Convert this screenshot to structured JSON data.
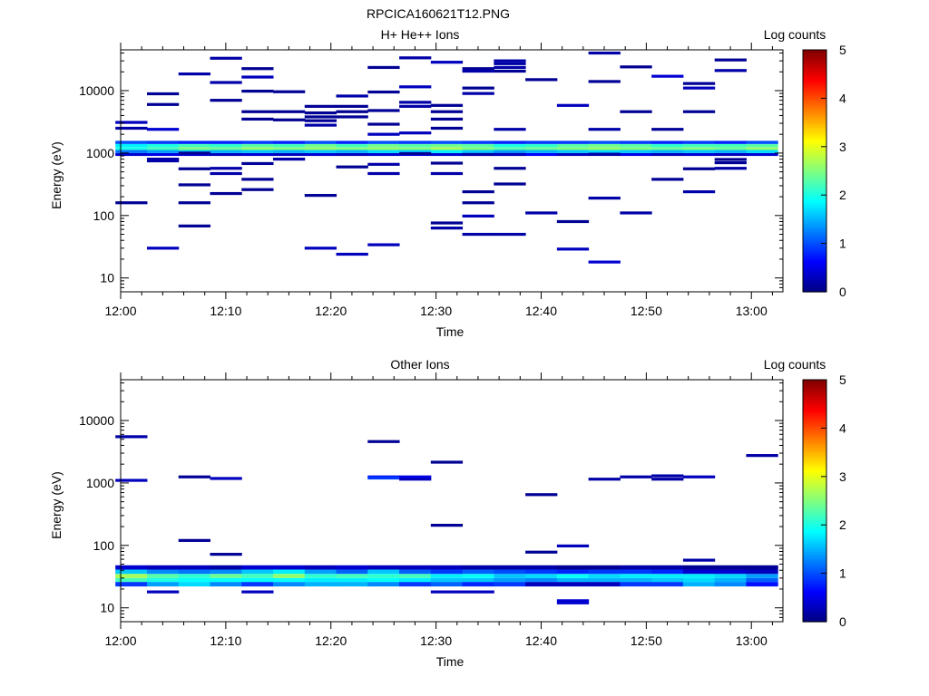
{
  "figure_title": "RPCICA160621T12.PNG",
  "chart_data": [
    {
      "type": "heatmap",
      "title": "H+ He++ Ions",
      "xlabel": "Time",
      "ylabel": "Energy (eV)",
      "yscale": "log",
      "xlim": [
        "12:00",
        "13:03"
      ],
      "ylim": [
        6,
        45000
      ],
      "xticks": [
        "12:00",
        "12:10",
        "12:20",
        "12:30",
        "12:40",
        "12:50",
        "13:00"
      ],
      "yticks": [
        "10",
        "100",
        "1000",
        "10000"
      ],
      "colorbar": {
        "label": "Log counts",
        "range": [
          0,
          5
        ],
        "ticks": [
          "0",
          "1",
          "2",
          "3",
          "4",
          "5"
        ],
        "colormap": "jet"
      },
      "time_columns_min": [
        1,
        4,
        7,
        10,
        13,
        16,
        19,
        22,
        25,
        28,
        31,
        34,
        37,
        40,
        43,
        46,
        49,
        52,
        55,
        58,
        61
      ],
      "band": {
        "energy_bins_ev": [
          900,
          1000,
          1120,
          1250,
          1400,
          1570
        ],
        "levels": [
          [
            0.4,
            1.2,
            2.0,
            1.8,
            1.0
          ],
          [
            0.5,
            1.4,
            2.2,
            2.0,
            0.9
          ],
          [
            0.4,
            1.6,
            2.5,
            2.2,
            0.8
          ],
          [
            0.3,
            1.5,
            2.4,
            2.1,
            0.8
          ],
          [
            0.4,
            1.6,
            2.6,
            2.3,
            0.9
          ],
          [
            0.3,
            1.5,
            2.5,
            2.2,
            0.8
          ],
          [
            0.4,
            1.6,
            2.6,
            2.4,
            1.0
          ],
          [
            0.3,
            1.5,
            2.5,
            2.2,
            0.8
          ],
          [
            0.4,
            1.7,
            2.6,
            2.4,
            1.0
          ],
          [
            0.5,
            1.6,
            2.5,
            2.3,
            0.9
          ],
          [
            0.4,
            1.8,
            2.7,
            2.4,
            1.0
          ],
          [
            0.3,
            1.6,
            2.5,
            2.3,
            0.9
          ],
          [
            0.4,
            1.4,
            2.3,
            2.0,
            0.8
          ],
          [
            0.6,
            1.5,
            2.4,
            2.1,
            0.9
          ],
          [
            0.3,
            1.6,
            2.5,
            2.3,
            0.9
          ],
          [
            0.4,
            1.7,
            2.6,
            2.4,
            1.0
          ],
          [
            0.5,
            1.6,
            2.5,
            2.3,
            0.9
          ],
          [
            0.3,
            1.5,
            2.4,
            2.1,
            0.8
          ],
          [
            0.4,
            1.6,
            2.5,
            2.2,
            0.9
          ],
          [
            0.3,
            1.5,
            2.4,
            2.2,
            0.8
          ],
          [
            0.4,
            1.7,
            2.6,
            2.3,
            1.0
          ]
        ]
      },
      "sparse": [
        [
          1,
          3100,
          0.3
        ],
        [
          1,
          2500,
          0.2
        ],
        [
          1,
          160,
          0.1
        ],
        [
          4,
          8900,
          0.1
        ],
        [
          4,
          6000,
          0.1
        ],
        [
          4,
          2400,
          0.4
        ],
        [
          4,
          800,
          0.2
        ],
        [
          4,
          750,
          0.2
        ],
        [
          4,
          30,
          0.3
        ],
        [
          7,
          18500,
          0.2
        ],
        [
          7,
          1000,
          0.1
        ],
        [
          7,
          560,
          0.1
        ],
        [
          7,
          310,
          0.1
        ],
        [
          7,
          160,
          0.1
        ],
        [
          7,
          68,
          0.1
        ],
        [
          10,
          33000,
          0.2
        ],
        [
          10,
          13500,
          0.2
        ],
        [
          10,
          7000,
          0.1
        ],
        [
          10,
          570,
          0.2
        ],
        [
          10,
          470,
          0.2
        ],
        [
          10,
          225,
          0.1
        ],
        [
          13,
          22500,
          0.1
        ],
        [
          13,
          16500,
          0.3
        ],
        [
          13,
          9800,
          0.1
        ],
        [
          13,
          4600,
          0.1
        ],
        [
          13,
          3500,
          0.1
        ],
        [
          13,
          680,
          0.1
        ],
        [
          13,
          380,
          0.1
        ],
        [
          13,
          260,
          0.1
        ],
        [
          16,
          9600,
          0.1
        ],
        [
          16,
          4600,
          0.1
        ],
        [
          16,
          3400,
          0.1
        ],
        [
          16,
          800,
          0.2
        ],
        [
          19,
          5600,
          0.1
        ],
        [
          19,
          4400,
          0.1
        ],
        [
          19,
          3800,
          0.1
        ],
        [
          19,
          3300,
          0.1
        ],
        [
          19,
          2800,
          0.2
        ],
        [
          19,
          210,
          0.1
        ],
        [
          19,
          30,
          0.3
        ],
        [
          22,
          8200,
          0.2
        ],
        [
          22,
          5600,
          0.1
        ],
        [
          22,
          4600,
          0.1
        ],
        [
          22,
          3800,
          0.1
        ],
        [
          22,
          600,
          0.1
        ],
        [
          22,
          24,
          0.3
        ],
        [
          25,
          23500,
          0.1
        ],
        [
          25,
          9500,
          0.1
        ],
        [
          25,
          4800,
          0.1
        ],
        [
          25,
          2900,
          0.1
        ],
        [
          25,
          2000,
          0.3
        ],
        [
          25,
          660,
          0.2
        ],
        [
          25,
          470,
          0.2
        ],
        [
          25,
          34,
          0.3
        ],
        [
          28,
          33500,
          0.2
        ],
        [
          28,
          11500,
          0.3
        ],
        [
          28,
          6500,
          0.2
        ],
        [
          28,
          5600,
          0.2
        ],
        [
          28,
          2100,
          0.3
        ],
        [
          28,
          980,
          0.1
        ],
        [
          31,
          28500,
          0.3
        ],
        [
          31,
          5800,
          0.1
        ],
        [
          31,
          4600,
          0.1
        ],
        [
          31,
          3500,
          0.1
        ],
        [
          31,
          2500,
          0.1
        ],
        [
          31,
          690,
          0.1
        ],
        [
          31,
          470,
          0.2
        ],
        [
          31,
          76,
          0.1
        ],
        [
          31,
          63,
          0.2
        ],
        [
          34,
          22500,
          0.1
        ],
        [
          34,
          20500,
          0.2
        ],
        [
          34,
          11000,
          0.1
        ],
        [
          34,
          9000,
          0.2
        ],
        [
          34,
          950,
          0.2
        ],
        [
          34,
          240,
          0.1
        ],
        [
          34,
          160,
          0.1
        ],
        [
          34,
          98,
          0.3
        ],
        [
          34,
          50,
          0.2
        ],
        [
          37,
          30000,
          0.2
        ],
        [
          37,
          27000,
          0.2
        ],
        [
          37,
          23500,
          0.2
        ],
        [
          37,
          20500,
          0.1
        ],
        [
          37,
          2400,
          0.2
        ],
        [
          37,
          950,
          0.3
        ],
        [
          37,
          570,
          0.1
        ],
        [
          37,
          320,
          0.1
        ],
        [
          37,
          50,
          0.2
        ],
        [
          40,
          15000,
          0.1
        ],
        [
          40,
          110,
          0.2
        ],
        [
          43,
          5800,
          0.3
        ],
        [
          43,
          80,
          0.1
        ],
        [
          43,
          29,
          0.3
        ],
        [
          46,
          40000,
          0.2
        ],
        [
          46,
          14000,
          0.1
        ],
        [
          46,
          2400,
          0.2
        ],
        [
          46,
          960,
          0.2
        ],
        [
          46,
          190,
          0.2
        ],
        [
          46,
          18,
          0.4
        ],
        [
          49,
          24000,
          0.1
        ],
        [
          49,
          4600,
          0.1
        ],
        [
          49,
          110,
          0.2
        ],
        [
          52,
          17000,
          0.4
        ],
        [
          52,
          2400,
          0.1
        ],
        [
          52,
          380,
          0.1
        ],
        [
          55,
          13000,
          0.1
        ],
        [
          55,
          11000,
          0.3
        ],
        [
          55,
          4600,
          0.1
        ],
        [
          55,
          560,
          0.1
        ],
        [
          55,
          240,
          0.2
        ],
        [
          58,
          31000,
          0.1
        ],
        [
          58,
          21000,
          0.2
        ],
        [
          58,
          790,
          0.1
        ],
        [
          58,
          700,
          0.1
        ],
        [
          58,
          570,
          0.2
        ]
      ]
    },
    {
      "type": "heatmap",
      "title": "Other Ions",
      "xlabel": "Time",
      "ylabel": "Energy (eV)",
      "yscale": "log",
      "xlim": [
        "12:00",
        "13:03"
      ],
      "ylim": [
        6,
        45000
      ],
      "xticks": [
        "12:00",
        "12:10",
        "12:20",
        "12:30",
        "12:40",
        "12:50",
        "13:00"
      ],
      "yticks": [
        "10",
        "100",
        "1000",
        "10000"
      ],
      "colorbar": {
        "label": "Log counts",
        "range": [
          0,
          5
        ],
        "ticks": [
          "0",
          "1",
          "2",
          "3",
          "4",
          "5"
        ],
        "colormap": "jet"
      },
      "time_columns_min": [
        1,
        4,
        7,
        10,
        13,
        16,
        19,
        22,
        25,
        28,
        31,
        34,
        37,
        40,
        43,
        46,
        49,
        52,
        55,
        58,
        61
      ],
      "band": {
        "energy_bins_ev": [
          22,
          26,
          30,
          35,
          41,
          48
        ],
        "levels": [
          [
            0.9,
            2.2,
            2.7,
            1.6,
            0.4
          ],
          [
            1.4,
            2.0,
            2.3,
            1.3,
            0.3
          ],
          [
            1.7,
            1.9,
            2.1,
            1.2,
            0.3
          ],
          [
            1.3,
            1.9,
            2.4,
            1.3,
            0.2
          ],
          [
            0.9,
            1.9,
            2.2,
            1.6,
            0.4
          ],
          [
            1.3,
            1.9,
            2.6,
            1.8,
            0.4
          ],
          [
            1.5,
            1.8,
            2.1,
            1.4,
            0.3
          ],
          [
            1.5,
            1.8,
            2.2,
            1.1,
            0.4
          ],
          [
            1.3,
            1.9,
            2.1,
            1.6,
            0.3
          ],
          [
            0.9,
            1.8,
            2.2,
            1.1,
            0.3
          ],
          [
            1.1,
            1.6,
            1.8,
            0.9,
            0.3
          ],
          [
            0.8,
            1.6,
            1.9,
            1.1,
            0.2
          ],
          [
            0.9,
            1.4,
            1.6,
            1.0,
            0.2
          ],
          [
            0.3,
            1.3,
            1.7,
            0.9,
            0.2
          ],
          [
            0.3,
            1.5,
            1.9,
            0.8,
            0.1
          ],
          [
            0.3,
            1.5,
            1.7,
            0.9,
            0.1
          ],
          [
            0.9,
            1.5,
            1.8,
            0.9,
            0.2
          ],
          [
            0.9,
            1.6,
            1.8,
            0.8,
            0.2
          ],
          [
            1.5,
            1.7,
            1.8,
            0.4,
            0.1
          ],
          [
            1.3,
            1.5,
            1.7,
            0.4,
            0.1
          ],
          [
            0.7,
            1.1,
            1.4,
            0.3,
            0.1
          ]
        ]
      },
      "sparse": [
        [
          1,
          5500,
          0.2
        ],
        [
          1,
          1100,
          0.3
        ],
        [
          4,
          18,
          0.3
        ],
        [
          7,
          1250,
          0.1
        ],
        [
          7,
          120,
          0.1
        ],
        [
          10,
          1180,
          0.3
        ],
        [
          10,
          72,
          0.1
        ],
        [
          13,
          18,
          0.3
        ],
        [
          25,
          4600,
          0.1
        ],
        [
          25,
          1250,
          0.7
        ],
        [
          25,
          1200,
          0.9
        ],
        [
          28,
          1250,
          0.5
        ],
        [
          28,
          1150,
          0.3
        ],
        [
          31,
          2150,
          0.1
        ],
        [
          31,
          210,
          0.1
        ],
        [
          31,
          18,
          0.3
        ],
        [
          34,
          18,
          0.3
        ],
        [
          40,
          650,
          0.1
        ],
        [
          40,
          78,
          0.1
        ],
        [
          43,
          98,
          0.3
        ],
        [
          43,
          13,
          0.4
        ],
        [
          43,
          12,
          0.4
        ],
        [
          46,
          1150,
          0.2
        ],
        [
          49,
          1250,
          0.2
        ],
        [
          52,
          1300,
          0.2
        ],
        [
          52,
          1150,
          0.2
        ],
        [
          55,
          1250,
          0.3
        ],
        [
          55,
          58,
          0.2
        ],
        [
          61,
          2750,
          0.2
        ]
      ]
    }
  ]
}
